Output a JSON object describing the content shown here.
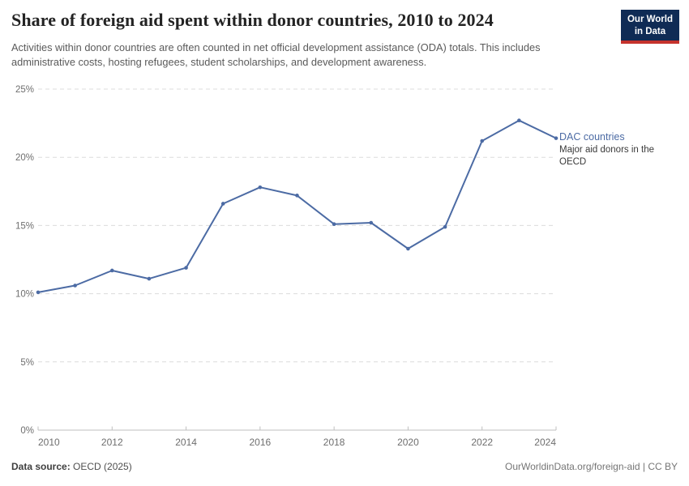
{
  "header": {
    "title": "Share of foreign aid spent within donor countries, 2010 to 2024",
    "subtitle": "Activities within donor countries are often counted in net official development assistance (ODA) totals. This includes administrative costs, hosting refugees, student scholarships, and development awareness.",
    "logo": {
      "line1": "Our World",
      "line2": "in Data",
      "bg_color": "#0f2b55",
      "stripe_color": "#c5332d",
      "text_color": "#ffffff"
    }
  },
  "chart_data": {
    "type": "line",
    "title": "Share of foreign aid spent within donor countries, 2010 to 2024",
    "xlabel": "",
    "ylabel": "",
    "unit": "%",
    "x": [
      2010,
      2011,
      2012,
      2013,
      2014,
      2015,
      2016,
      2017,
      2018,
      2019,
      2020,
      2021,
      2022,
      2023,
      2024
    ],
    "series": [
      {
        "name": "DAC countries",
        "description": "Major aid donors in the OECD",
        "color": "#4c6ba4",
        "values": [
          10.1,
          10.6,
          11.7,
          11.1,
          11.9,
          16.6,
          17.8,
          17.2,
          15.1,
          15.2,
          13.3,
          14.9,
          21.2,
          22.7,
          21.4
        ]
      }
    ],
    "ylim": [
      0,
      25
    ],
    "y_ticks": [
      0,
      5,
      10,
      15,
      20,
      25
    ],
    "y_tick_labels": [
      "0%",
      "5%",
      "10%",
      "15%",
      "20%",
      "25%"
    ],
    "x_tick_labels": [
      2010,
      2012,
      2014,
      2016,
      2018,
      2020,
      2022,
      2024
    ],
    "grid": "horizontal-dashed",
    "legend_position": "right-of-line-end",
    "colors": {
      "gridline": "#dcdcdc",
      "axis_line": "#bfbfbf",
      "tick_label": "#6e6e6e"
    }
  },
  "footer": {
    "source_label": "Data source:",
    "source_value": " OECD (2025)",
    "note_right": "OurWorldinData.org/foreign-aid | CC BY"
  }
}
